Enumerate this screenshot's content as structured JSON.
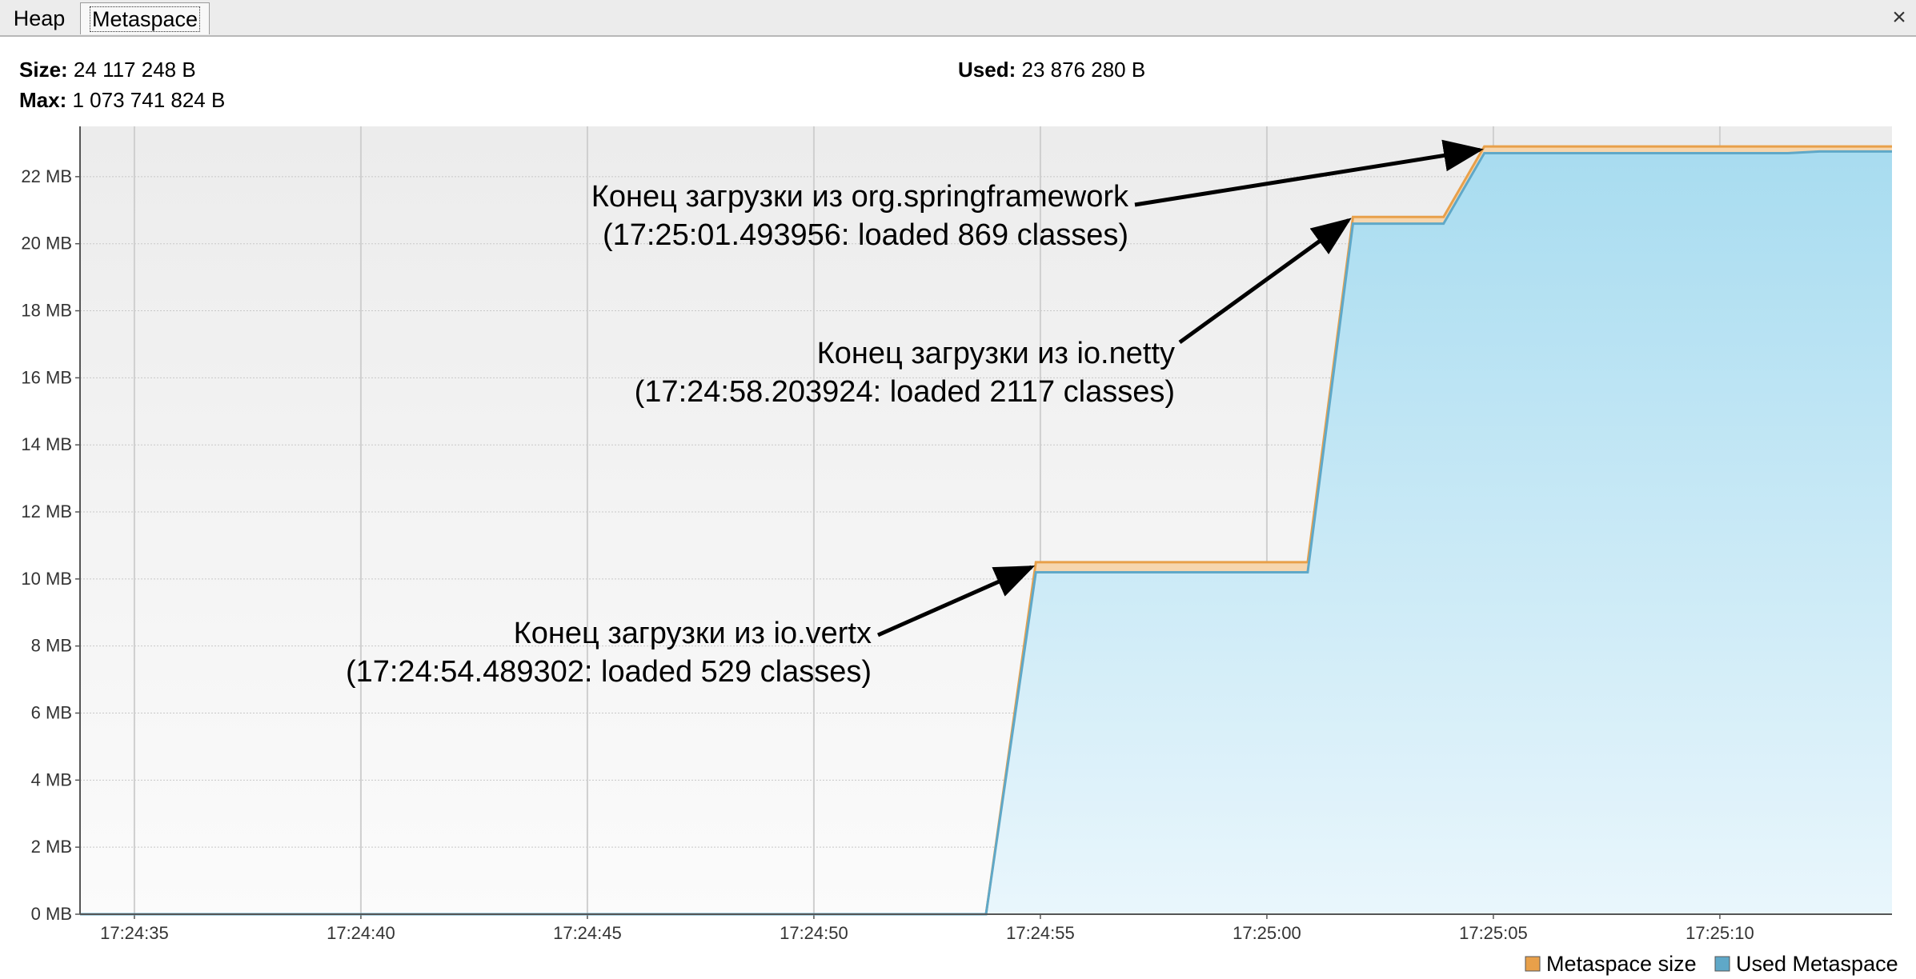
{
  "tabs": [
    {
      "label": "Heap",
      "selected": false
    },
    {
      "label": "Metaspace",
      "selected": true
    }
  ],
  "close_label": "×",
  "info": {
    "size_label": "Size:",
    "size_value": "24 117 248 B",
    "max_label": "Max:",
    "max_value": "1 073 741 824 B",
    "used_label": "Used:",
    "used_value": "23 876 280 B"
  },
  "chart_data": {
    "type": "area",
    "title": "",
    "xlabel": "",
    "ylabel": "",
    "x_ticks": [
      "17:24:35",
      "17:24:40",
      "17:24:45",
      "17:24:50",
      "17:24:55",
      "17:25:00",
      "17:25:05",
      "17:25:10"
    ],
    "y_ticks": [
      "0 MB",
      "2 MB",
      "4 MB",
      "6 MB",
      "8 MB",
      "10 MB",
      "12 MB",
      "14 MB",
      "16 MB",
      "18 MB",
      "20 MB",
      "22 MB"
    ],
    "xlim": [
      "17:24:33.8",
      "17:25:13.8"
    ],
    "ylim": [
      0,
      23.5
    ],
    "grid": true,
    "legend_position": "bottom-right",
    "series": [
      {
        "name": "Metaspace size",
        "color": "#e8a04a",
        "points": [
          [
            "17:24:33.8",
            0
          ],
          [
            "17:24:53.8",
            0
          ],
          [
            "17:24:54.9",
            10.5
          ],
          [
            "17:25:00.9",
            10.5
          ],
          [
            "17:25:01.9",
            20.8
          ],
          [
            "17:25:03.9",
            20.8
          ],
          [
            "17:25:04.8",
            22.9
          ],
          [
            "17:25:13.8",
            22.9
          ]
        ]
      },
      {
        "name": "Used Metaspace",
        "color": "#5fa8c8",
        "points": [
          [
            "17:24:33.8",
            0
          ],
          [
            "17:24:53.8",
            0
          ],
          [
            "17:24:54.9",
            10.2
          ],
          [
            "17:25:00.9",
            10.2
          ],
          [
            "17:25:01.9",
            20.6
          ],
          [
            "17:25:03.9",
            20.6
          ],
          [
            "17:25:04.8",
            22.7
          ],
          [
            "17:25:11.5",
            22.7
          ],
          [
            "17:25:12.2",
            22.75
          ],
          [
            "17:25:13.8",
            22.75
          ]
        ]
      }
    ],
    "annotations": [
      {
        "line1": "Конец загрузки из io.vertx",
        "line2": "(17:24:54.489302: loaded 529 classes)",
        "target": [
          "17:24:54.8",
          10.35
        ]
      },
      {
        "line1": "Конец загрузки из io.netty",
        "line2": "(17:24:58.203924: loaded 2117 classes)",
        "target": [
          "17:25:01.8",
          20.7
        ]
      },
      {
        "line1": "Конец загрузки из org.springframework",
        "line2": "(17:25:01.493956: loaded 869 classes)",
        "target": [
          "17:25:04.7",
          22.8
        ]
      }
    ]
  }
}
